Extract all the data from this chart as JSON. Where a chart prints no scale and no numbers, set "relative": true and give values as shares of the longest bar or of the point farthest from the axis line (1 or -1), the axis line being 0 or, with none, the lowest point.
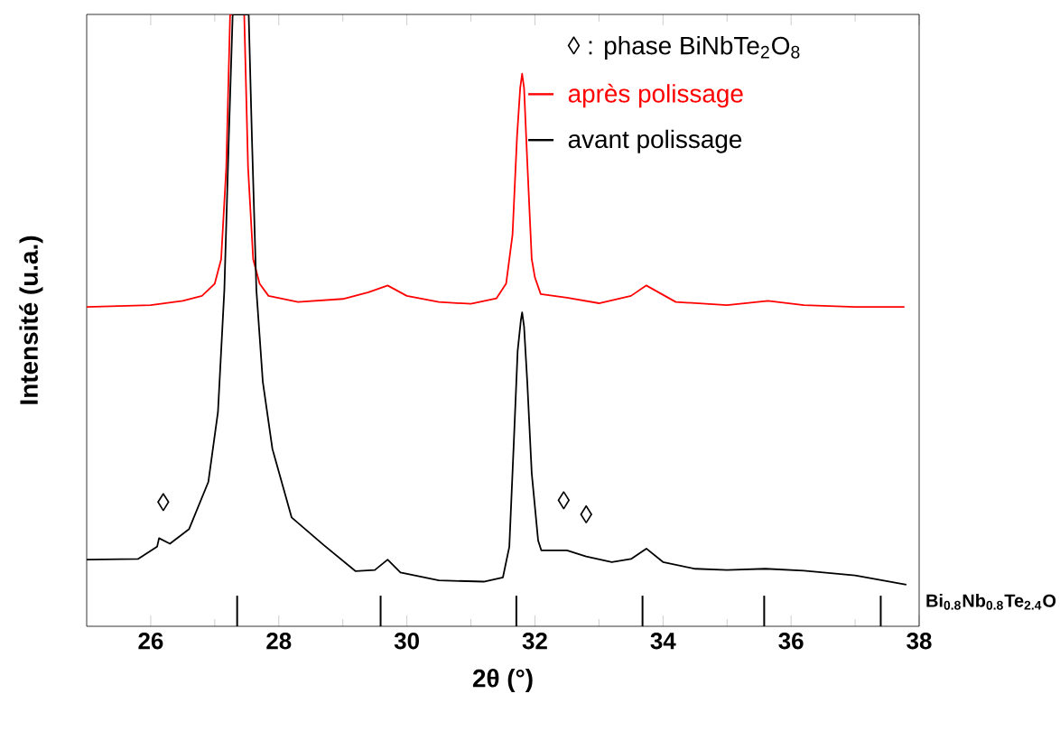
{
  "chart_data": {
    "type": "line",
    "xlabel": "2θ (°)",
    "ylabel": "Intensité (u.a.)",
    "relative": true,
    "xlim": [
      25,
      38
    ],
    "xticks": [
      26,
      28,
      30,
      32,
      34,
      36,
      38
    ],
    "legend": "top right",
    "annotations": [
      "◊ : phase BiNbTe$_{2}$O$_{8}$",
      "◊",
      "◊",
      "◊",
      "Bi$_{0.8}$Nb$_{0.8}$Te$_{2.4}$O"
    ],
    "series": [
      {
        "name": "après polissage",
        "color": "#ff0000",
        "x": [
          25,
          26,
          26.5,
          26.8,
          27,
          27.1,
          27.18,
          27.24,
          27.46,
          27.52,
          27.6,
          27.7,
          27.84,
          28.3,
          29,
          29.4,
          29.7,
          30,
          30.5,
          31,
          31.4,
          31.55,
          31.65,
          31.72,
          31.77,
          31.8,
          31.83,
          31.88,
          31.95,
          32,
          32.09,
          32.5,
          33,
          33.5,
          33.74,
          34.2,
          35,
          35.64,
          36.2,
          37,
          37.77
        ],
        "values": [
          0.522,
          0.525,
          0.532,
          0.54,
          0.56,
          0.6,
          0.75,
          1,
          1,
          0.75,
          0.6,
          0.56,
          0.54,
          0.53,
          0.535,
          0.546,
          0.557,
          0.54,
          0.53,
          0.527,
          0.536,
          0.56,
          0.64,
          0.8,
          0.88,
          0.903,
          0.88,
          0.76,
          0.6,
          0.57,
          0.543,
          0.537,
          0.528,
          0.54,
          0.557,
          0.53,
          0.525,
          0.532,
          0.525,
          0.522,
          0.522
        ]
      },
      {
        "name": "avant polissage",
        "color": "#000000",
        "x": [
          25,
          25.8,
          26.1,
          26.13,
          26.3,
          26.6,
          26.9,
          27.05,
          27.15,
          27.22,
          27.28,
          27.53,
          27.58,
          27.65,
          27.75,
          27.9,
          28.2,
          28.7,
          29.2,
          29.5,
          29.7,
          29.9,
          30.5,
          31.2,
          31.5,
          31.6,
          31.67,
          31.73,
          31.78,
          31.8,
          31.83,
          31.88,
          31.95,
          32.05,
          32.1,
          32.5,
          32.8,
          33.2,
          33.5,
          33.74,
          34,
          34.5,
          35,
          35.6,
          36.2,
          37,
          37.8
        ],
        "values": [
          0.109,
          0.11,
          0.13,
          0.144,
          0.135,
          0.159,
          0.236,
          0.35,
          0.55,
          0.8,
          1,
          1,
          0.8,
          0.55,
          0.4,
          0.29,
          0.178,
          0.133,
          0.09,
          0.092,
          0.109,
          0.088,
          0.075,
          0.073,
          0.08,
          0.13,
          0.3,
          0.45,
          0.5,
          0.513,
          0.49,
          0.4,
          0.25,
          0.14,
          0.124,
          0.124,
          0.114,
          0.105,
          0.11,
          0.127,
          0.105,
          0.094,
          0.092,
          0.094,
          0.091,
          0.083,
          0.068
        ]
      },
      {
        "type": "bar",
        "color": "#000000",
        "x": [
          27.35,
          29.59,
          31.71,
          33.68,
          35.58,
          37.4
        ],
        "values": [
          0.05,
          0.05,
          0.05,
          0.05,
          0.05,
          0.05
        ]
      }
    ]
  }
}
